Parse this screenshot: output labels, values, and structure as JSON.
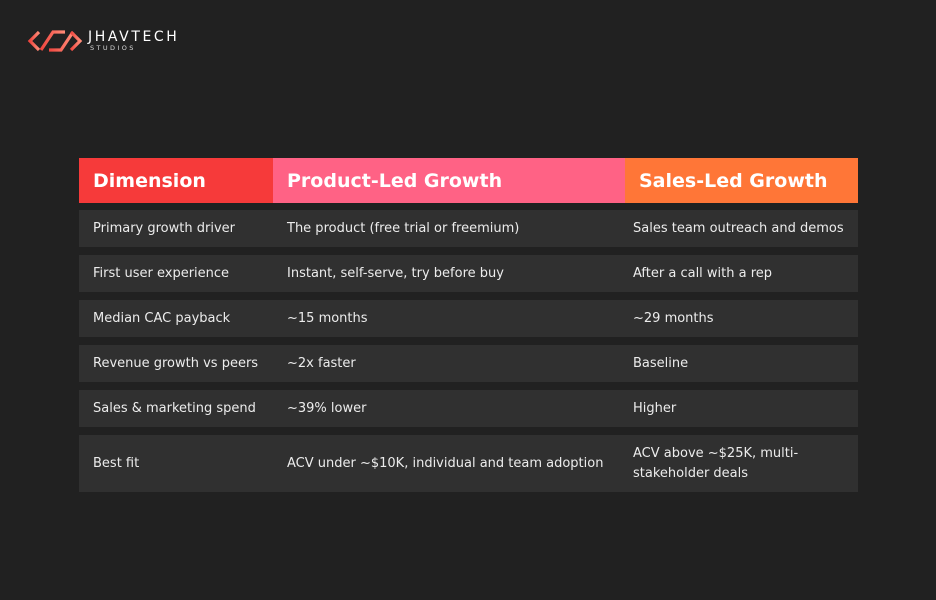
{
  "brand": {
    "name": "JHAVTECH",
    "subtitle": "STUDIOS",
    "colors": {
      "primary": "#f85a5a",
      "secondary": "#ff7f6b"
    }
  },
  "table": {
    "headers": [
      "Dimension",
      "Product-Led Growth",
      "Sales-Led Growth"
    ],
    "header_colors": [
      "#f63a3a",
      "#ff6285",
      "#ff7637"
    ],
    "rows": [
      [
        "Primary growth driver",
        "The product (free trial or freemium)",
        "Sales team outreach and demos"
      ],
      [
        "First user experience",
        "Instant, self-serve, try before buy",
        "After a call with a rep"
      ],
      [
        "Median CAC payback",
        "~15 months",
        "~29 months"
      ],
      [
        "Revenue growth vs peers",
        "~2x faster",
        "Baseline"
      ],
      [
        "Sales & marketing spend",
        "~39% lower",
        "Higher"
      ],
      [
        "Best fit",
        "ACV under ~$10K, individual and team adoption",
        "ACV above ~$25K, multi-stakeholder deals"
      ]
    ]
  },
  "colors": {
    "background": "#212121",
    "row_background": "#303030",
    "text": "#ececec"
  }
}
